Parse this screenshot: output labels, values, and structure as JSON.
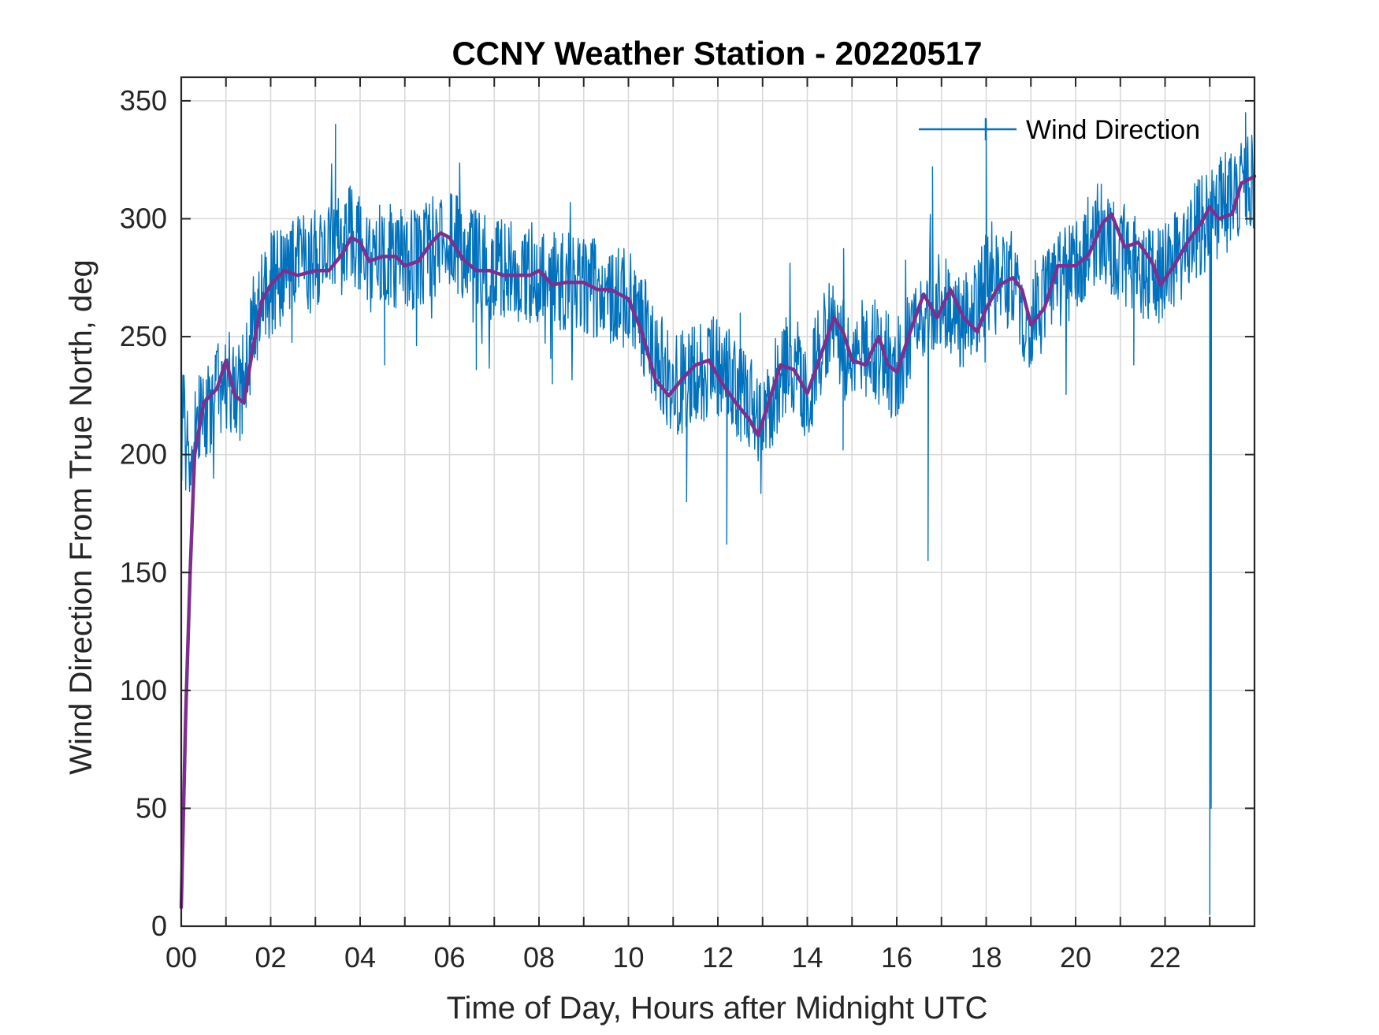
{
  "chart_data": {
    "type": "line",
    "title": "CCNY Weather Station - 20220517",
    "xlabel": "Time of Day, Hours after Midnight UTC",
    "ylabel": "Wind Direction From True North, deg",
    "xlim": [
      0,
      24
    ],
    "ylim": [
      0,
      360
    ],
    "grid": true,
    "legend_location": "top-right",
    "x_ticks": [
      0,
      1,
      2,
      3,
      4,
      5,
      6,
      7,
      8,
      9,
      10,
      11,
      12,
      13,
      14,
      15,
      16,
      17,
      18,
      19,
      20,
      21,
      22,
      23
    ],
    "x_tick_labels": [
      "00",
      "02",
      "04",
      "06",
      "08",
      "10",
      "12",
      "14",
      "16",
      "18",
      "20",
      "22"
    ],
    "x_tick_label_values": [
      0,
      2,
      4,
      6,
      8,
      10,
      12,
      14,
      16,
      18,
      20,
      22
    ],
    "y_ticks": [
      0,
      50,
      100,
      150,
      200,
      250,
      300,
      350
    ],
    "y_tick_labels": [
      "0",
      "50",
      "100",
      "150",
      "200",
      "250",
      "300",
      "350"
    ],
    "series": [
      {
        "name": "Wind Direction",
        "color": "#0072BD",
        "in_legend": true,
        "noise_amplitude": 22,
        "sample_step_hours": 0.0125,
        "x": [
          0,
          0.05,
          0.12,
          0.2,
          0.3,
          0.5,
          0.8,
          1.0,
          1.2,
          1.4,
          1.6,
          2.0,
          2.5,
          3.0,
          3.5,
          3.8,
          4.2,
          4.6,
          5.0,
          5.5,
          6.0,
          6.5,
          7.0,
          7.5,
          8.0,
          8.5,
          9.0,
          9.5,
          10.0,
          10.5,
          11.0,
          11.5,
          12.0,
          12.5,
          13.0,
          13.5,
          14.0,
          14.5,
          15.0,
          15.5,
          16.0,
          16.5,
          17.0,
          17.5,
          18.0,
          18.5,
          19.0,
          19.5,
          20.0,
          20.5,
          21.0,
          21.5,
          21.8,
          22.0,
          22.5,
          23.0,
          23.5,
          24.0
        ],
        "y": [
          205,
          215,
          200,
          195,
          205,
          220,
          225,
          235,
          225,
          230,
          255,
          272,
          280,
          282,
          288,
          292,
          282,
          285,
          282,
          285,
          292,
          285,
          278,
          277,
          276,
          272,
          273,
          270,
          265,
          248,
          228,
          235,
          238,
          225,
          215,
          238,
          228,
          255,
          240,
          245,
          235,
          262,
          268,
          255,
          272,
          270,
          258,
          270,
          280,
          295,
          285,
          280,
          272,
          280,
          290,
          302,
          308,
          318
        ],
        "spikes": [
          {
            "x": 3.45,
            "y": 340
          },
          {
            "x": 4.55,
            "y": 238
          },
          {
            "x": 6.6,
            "y": 236
          },
          {
            "x": 8.3,
            "y": 230
          },
          {
            "x": 11.3,
            "y": 180
          },
          {
            "x": 12.2,
            "y": 162
          },
          {
            "x": 12.5,
            "y": 260
          },
          {
            "x": 14.8,
            "y": 202
          },
          {
            "x": 16.7,
            "y": 155
          },
          {
            "x": 16.8,
            "y": 322
          },
          {
            "x": 18.0,
            "y": 340
          },
          {
            "x": 21.3,
            "y": 238
          },
          {
            "x": 23.0,
            "y": 5
          },
          {
            "x": 23.03,
            "y": 50
          },
          {
            "x": 23.8,
            "y": 345
          }
        ]
      },
      {
        "name": "Moving Average",
        "color": "#7E2F8E",
        "in_legend": false,
        "x": [
          0,
          0.1,
          0.2,
          0.3,
          0.5,
          0.8,
          1.0,
          1.2,
          1.4,
          1.6,
          1.8,
          2.0,
          2.3,
          2.6,
          3.0,
          3.3,
          3.6,
          3.8,
          4.0,
          4.2,
          4.5,
          4.8,
          5.0,
          5.3,
          5.6,
          5.8,
          6.0,
          6.3,
          6.6,
          6.9,
          7.2,
          7.5,
          7.8,
          8.0,
          8.3,
          8.6,
          9.0,
          9.3,
          9.6,
          10.0,
          10.3,
          10.6,
          10.9,
          11.2,
          11.5,
          11.8,
          12.1,
          12.4,
          12.7,
          12.9,
          13.1,
          13.4,
          13.7,
          14.0,
          14.3,
          14.6,
          14.8,
          15.0,
          15.3,
          15.6,
          15.8,
          16.0,
          16.3,
          16.6,
          16.9,
          17.2,
          17.5,
          17.8,
          18.0,
          18.3,
          18.6,
          18.8,
          19.0,
          19.3,
          19.6,
          20.0,
          20.3,
          20.6,
          20.8,
          21.1,
          21.4,
          21.7,
          21.9,
          22.2,
          22.5,
          22.8,
          23.0,
          23.2,
          23.5,
          23.7,
          24.0
        ],
        "y": [
          8,
          90,
          150,
          200,
          222,
          228,
          240,
          225,
          222,
          245,
          265,
          272,
          278,
          276,
          278,
          278,
          285,
          292,
          290,
          282,
          284,
          284,
          280,
          282,
          290,
          294,
          292,
          283,
          278,
          278,
          276,
          276,
          276,
          278,
          272,
          273,
          273,
          270,
          270,
          266,
          252,
          232,
          225,
          232,
          238,
          240,
          230,
          222,
          215,
          208,
          220,
          238,
          236,
          226,
          242,
          258,
          252,
          240,
          238,
          250,
          238,
          235,
          252,
          268,
          258,
          270,
          258,
          252,
          262,
          272,
          275,
          270,
          255,
          262,
          280,
          280,
          285,
          298,
          302,
          288,
          290,
          282,
          272,
          280,
          290,
          298,
          305,
          300,
          302,
          315,
          318
        ]
      }
    ]
  }
}
